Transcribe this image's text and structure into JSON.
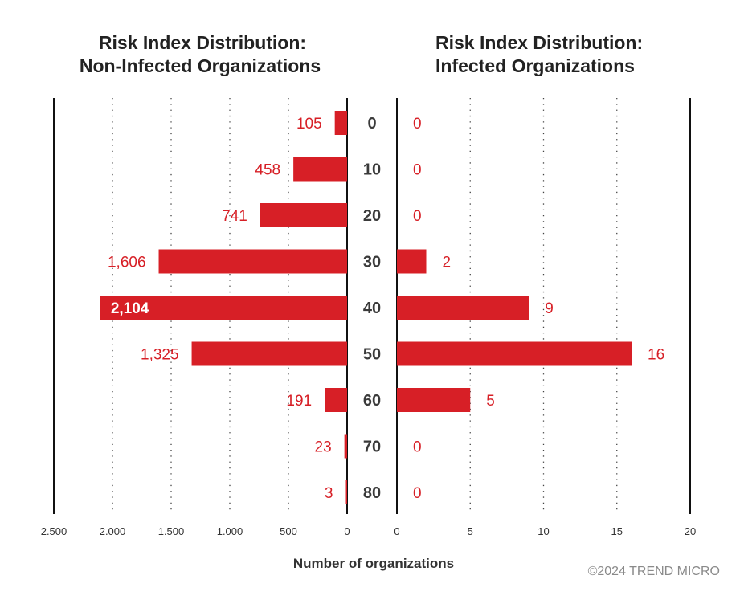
{
  "chart_data": [
    {
      "type": "bar",
      "orientation": "horizontal",
      "direction": "right-to-left",
      "title": [
        "Risk Index Distribution:",
        "Non-Infected Organizations"
      ],
      "categories": [
        "0",
        "10",
        "20",
        "30",
        "40",
        "50",
        "60",
        "70",
        "80"
      ],
      "values": [
        105,
        458,
        741,
        1606,
        2104,
        1325,
        191,
        23,
        3
      ],
      "value_labels": [
        "105",
        "458",
        "741",
        "1,606",
        "2,104",
        "1,325",
        "191",
        "23",
        "3"
      ],
      "highlighted_label_index": 4,
      "xlim": [
        0,
        2500
      ],
      "ticks": [
        0,
        500,
        1000,
        1500,
        2000,
        2500
      ],
      "tick_labels": [
        "0",
        "500",
        "1.000",
        "1.500",
        "2.000",
        "2.500"
      ],
      "grid": "dotted vertical"
    },
    {
      "type": "bar",
      "orientation": "horizontal",
      "direction": "left-to-right",
      "title": [
        "Risk Index Distribution:",
        "Infected Organizations"
      ],
      "categories": [
        "0",
        "10",
        "20",
        "30",
        "40",
        "50",
        "60",
        "70",
        "80"
      ],
      "values": [
        0,
        0,
        0,
        2,
        9,
        16,
        5,
        0,
        0
      ],
      "value_labels": [
        "0",
        "0",
        "0",
        "2",
        "9",
        "16",
        "5",
        "0",
        "0"
      ],
      "xlim": [
        0,
        20
      ],
      "ticks": [
        0,
        5,
        10,
        15,
        20
      ],
      "tick_labels": [
        "0",
        "5",
        "10",
        "15",
        "20"
      ],
      "grid": "dotted vertical"
    }
  ],
  "xlabel": "Number of organizations",
  "credit": "©2024 TREND MICRO",
  "colors": {
    "bar": "#d71f26",
    "label": "#d71f26",
    "axis": "#111111",
    "grid": "#444444",
    "category": "#3a3a3a"
  }
}
